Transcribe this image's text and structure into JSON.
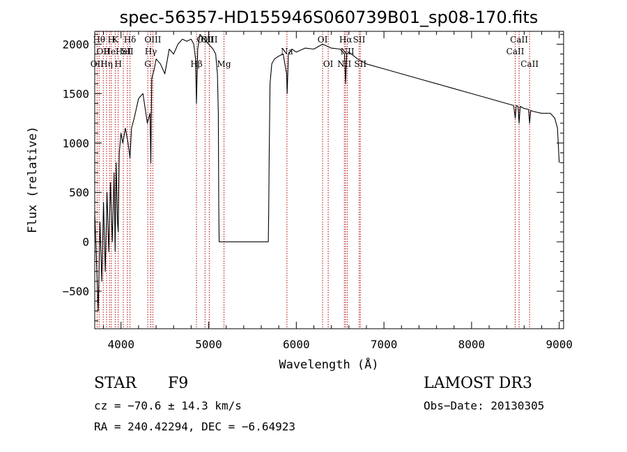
{
  "chart_data": {
    "type": "line",
    "title": "spec-56357-HD155946S060739B01_sp08-170.fits",
    "xlabel": "Wavelength (Å)",
    "ylabel": "Flux (relative)",
    "xlim": [
      3700,
      9050
    ],
    "ylim": [
      -880,
      2130
    ],
    "xticks": [
      4000,
      5000,
      6000,
      7000,
      8000,
      9000
    ],
    "yticks": [
      -500,
      0,
      500,
      1000,
      1500,
      2000
    ],
    "grid": false,
    "series": [
      {
        "name": "spectrum",
        "x": [
          3700,
          3720,
          3740,
          3760,
          3780,
          3800,
          3820,
          3840,
          3860,
          3880,
          3900,
          3920,
          3933,
          3945,
          3960,
          3968,
          3980,
          4000,
          4020,
          4050,
          4080,
          4102,
          4120,
          4150,
          4200,
          4250,
          4300,
          4330,
          4340,
          4350,
          4380,
          4400,
          4450,
          4500,
          4550,
          4600,
          4650,
          4700,
          4750,
          4800,
          4830,
          4850,
          4861,
          4875,
          4900,
          4950,
          5000,
          5050,
          5080,
          5100,
          5110,
          5115,
          5120,
          5400,
          5680,
          5685,
          5690,
          5700,
          5720,
          5750,
          5800,
          5850,
          5889,
          5896,
          5910,
          5950,
          6000,
          6100,
          6200,
          6300,
          6400,
          6500,
          6550,
          6563,
          6575,
          6600,
          6700,
          6800,
          7000,
          7200,
          7400,
          7600,
          7800,
          8000,
          8200,
          8400,
          8480,
          8498,
          8510,
          8530,
          8542,
          8555,
          8600,
          8650,
          8662,
          8675,
          8700,
          8800,
          8900,
          8950,
          8980,
          9000
        ],
        "y": [
          300,
          -200,
          -700,
          200,
          -400,
          400,
          -300,
          500,
          -100,
          600,
          0,
          700,
          -100,
          800,
          200,
          100,
          900,
          1100,
          1000,
          1150,
          1000,
          850,
          1150,
          1250,
          1450,
          1500,
          1200,
          1300,
          800,
          1650,
          1750,
          1850,
          1800,
          1700,
          1950,
          1900,
          2000,
          2050,
          2030,
          2050,
          2000,
          1850,
          1400,
          1950,
          2100,
          2050,
          2000,
          1950,
          1900,
          1700,
          1300,
          350,
          0,
          0,
          0,
          300,
          800,
          1600,
          1800,
          1850,
          1880,
          1900,
          1700,
          1500,
          1900,
          1950,
          1920,
          1960,
          1950,
          2000,
          1960,
          1950,
          1900,
          1600,
          1900,
          1920,
          1850,
          1800,
          1750,
          1700,
          1650,
          1600,
          1550,
          1500,
          1450,
          1400,
          1380,
          1250,
          1380,
          1370,
          1200,
          1370,
          1350,
          1340,
          1200,
          1330,
          1320,
          1300,
          1300,
          1250,
          1150,
          800
        ]
      }
    ],
    "line_markers": [
      {
        "wl": 3727,
        "label": "OII",
        "row": 2
      },
      {
        "wl": 3750,
        "label": "Hθ",
        "row": 0
      },
      {
        "wl": 3797,
        "label": "OII",
        "row": 1
      },
      {
        "wl": 3835,
        "label": "Hη",
        "row": 2
      },
      {
        "wl": 3869,
        "label": "He",
        "row": 1
      },
      {
        "wl": 3889,
        "label": "H",
        "row": 0
      },
      {
        "wl": 3934,
        "label": "K",
        "row": 0
      },
      {
        "wl": 3968,
        "label": "H",
        "row": 2
      },
      {
        "wl": 4026,
        "label": "HeI",
        "row": 1
      },
      {
        "wl": 4072,
        "label": "SII",
        "row": 1
      },
      {
        "wl": 4102,
        "label": "Hδ",
        "row": 0
      },
      {
        "wl": 4305,
        "label": "G",
        "row": 2
      },
      {
        "wl": 4340,
        "label": "Hγ",
        "row": 1
      },
      {
        "wl": 4363,
        "label": "OIII",
        "row": 0
      },
      {
        "wl": 4861,
        "label": "Hβ",
        "row": 2
      },
      {
        "wl": 4959,
        "label": "OIII",
        "row": 0
      },
      {
        "wl": 5007,
        "label": "OIII",
        "row": 0
      },
      {
        "wl": 5175,
        "label": "Mg",
        "row": 2
      },
      {
        "wl": 5893,
        "label": "Na",
        "row": 1
      },
      {
        "wl": 6300,
        "label": "OI",
        "row": 0
      },
      {
        "wl": 6364,
        "label": "OI",
        "row": 2
      },
      {
        "wl": 6548,
        "label": "NII",
        "row": 2
      },
      {
        "wl": 6563,
        "label": "Hα",
        "row": 0
      },
      {
        "wl": 6583,
        "label": "NII",
        "row": 1
      },
      {
        "wl": 6717,
        "label": "SII",
        "row": 0
      },
      {
        "wl": 6731,
        "label": "SII",
        "row": 2
      },
      {
        "wl": 8498,
        "label": "CaII",
        "row": 1
      },
      {
        "wl": 8542,
        "label": "CaII",
        "row": 0
      },
      {
        "wl": 8662,
        "label": "CaII",
        "row": 2
      }
    ]
  },
  "info": {
    "object_class": "STAR",
    "subclass": "F9",
    "survey": "LAMOST DR3",
    "cz": "cz = −70.6 ± 14.3 km/s",
    "obs_date": "Obs−Date: 20130305",
    "coords": "RA = 240.42294, DEC =  −6.64923"
  },
  "colors": {
    "line": "#000000",
    "marker": "#b00000"
  }
}
